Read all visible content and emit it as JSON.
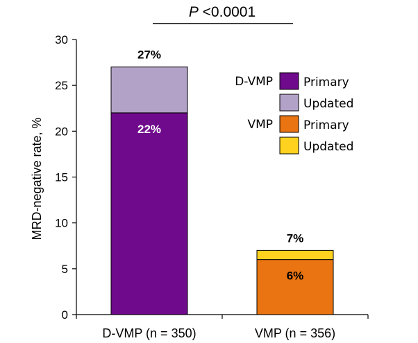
{
  "chart_data": {
    "type": "bar",
    "stacked": true,
    "categories": [
      "D-VMP (n = 350)",
      "VMP (n = 356)"
    ],
    "ylabel": "MRD-negative  rate, %",
    "xlabel": "",
    "ylim": [
      0,
      30
    ],
    "yticks": [
      0,
      5,
      10,
      15,
      20,
      25,
      30
    ],
    "grid": false,
    "legend_position": "right",
    "bars": [
      {
        "category": "D-VMP (n = 350)",
        "group": "D-VMP",
        "segments": [
          {
            "name": "Primary",
            "value": 22,
            "color": "#6f0a8c",
            "label": "22%"
          },
          {
            "name": "Updated",
            "value": 5,
            "color": "#b3a2c8",
            "label": ""
          }
        ],
        "total_label": "27%"
      },
      {
        "category": "VMP (n = 356)",
        "group": "VMP",
        "segments": [
          {
            "name": "Primary",
            "value": 6,
            "color": "#e97411",
            "label": "6%"
          },
          {
            "name": "Updated",
            "value": 1,
            "color": "#ffd21f",
            "label": ""
          }
        ],
        "total_label": "7%"
      }
    ],
    "legend": [
      {
        "group": "D-VMP",
        "items": [
          {
            "name": "Primary",
            "color": "#6f0a8c"
          },
          {
            "name": "Updated",
            "color": "#b3a2c8"
          }
        ]
      },
      {
        "group": "VMP",
        "items": [
          {
            "name": "Primary",
            "color": "#e97411"
          },
          {
            "name": "Updated",
            "color": "#ffd21f"
          }
        ]
      }
    ],
    "annotation": {
      "p_symbol": "P",
      "p_rest": " <0.0001"
    }
  }
}
